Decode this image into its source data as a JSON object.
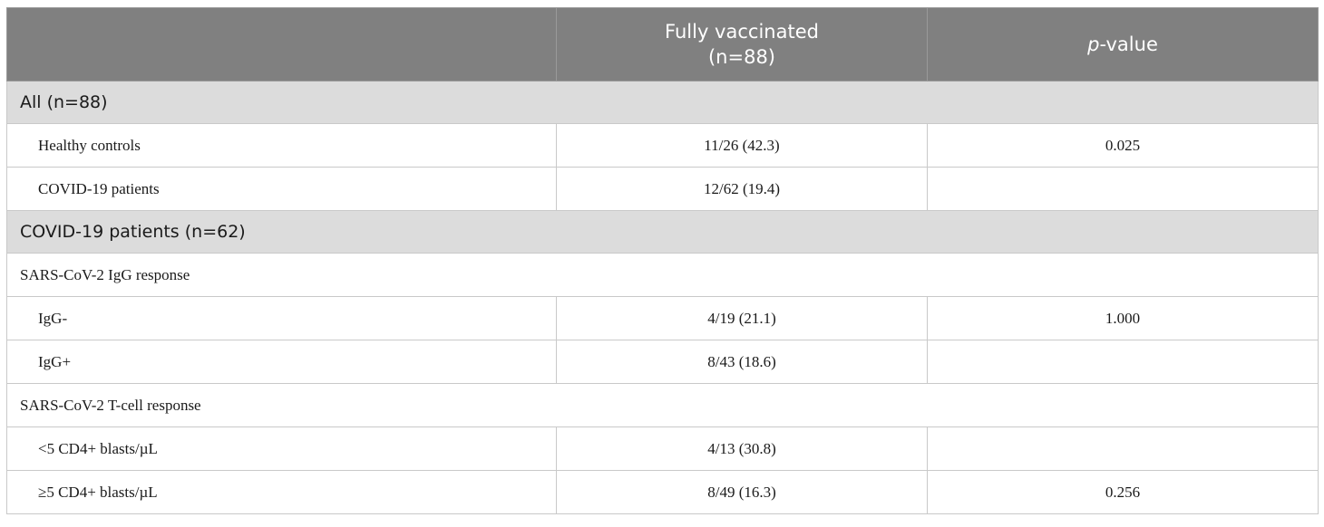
{
  "header": {
    "col1": "",
    "col2_line1": "Fully vaccinated",
    "col2_line2": "(n=88)",
    "col3_italic": "p",
    "col3_rest": "-value"
  },
  "rows": [
    {
      "type": "section",
      "label": "All (n=88)"
    },
    {
      "type": "data",
      "label": "Healthy controls",
      "vaccinated": "11/26 (42.3)",
      "p": "0.025"
    },
    {
      "type": "data",
      "label": "COVID-19 patients",
      "vaccinated": "12/62 (19.4)",
      "p": ""
    },
    {
      "type": "section",
      "label": "COVID-19 patients (n=62)"
    },
    {
      "type": "subheader",
      "label": "SARS-CoV-2 IgG response"
    },
    {
      "type": "data",
      "label": "IgG-",
      "vaccinated": "4/19 (21.1)",
      "p": "1.000"
    },
    {
      "type": "data",
      "label": "IgG+",
      "vaccinated": "8/43 (18.6)",
      "p": ""
    },
    {
      "type": "subheader",
      "label": "SARS-CoV-2 T-cell response"
    },
    {
      "type": "data",
      "label": "<5 CD4+ blasts/µL",
      "vaccinated": "4/13 (30.8)",
      "p": ""
    },
    {
      "type": "data",
      "label": "≥5 CD4+ blasts/µL",
      "vaccinated": "8/49 (16.3)",
      "p": "0.256"
    }
  ]
}
